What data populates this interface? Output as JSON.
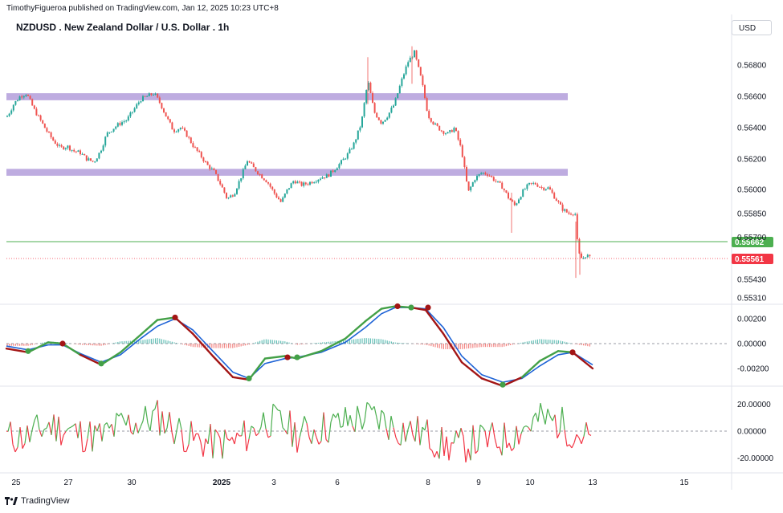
{
  "header": {
    "publisher": "TimothyFigueroa published on TradingView.com, Jan 12, 2025 10:23 UTC+8"
  },
  "title": {
    "text": "NZDUSD . New Zealand Dollar / U.S. Dollar . 1h"
  },
  "currency": "USD",
  "footer": {
    "logo_text": "TradingView",
    "logo_icon": "tradingview-logo-icon"
  },
  "colors": {
    "up": "#26a69a",
    "down": "#ef5350",
    "zone": "#b39ddb",
    "green_line": "#4caf50",
    "red_line": "#f23645",
    "fast": "#43a047",
    "slow": "#1e63d6",
    "slow_down": "#a31515"
  },
  "chart_data": [
    {
      "type": "candlestick",
      "title": "NZDUSD . New Zealand Dollar / U.S. Dollar . 1h",
      "y_ticks": [
        "0.56800",
        "0.56600",
        "0.56400",
        "0.56200",
        "0.56000",
        "0.55850",
        "0.55700",
        "0.55430",
        "0.55310"
      ],
      "ylim": [
        0.5528,
        0.5694
      ],
      "x_labels": [
        "25",
        "27",
        "30",
        "2025",
        "3",
        "6",
        "8",
        "9",
        "10",
        "13",
        "15"
      ],
      "current_price": "0.55561",
      "horizontal_line": "0.55662",
      "zones": [
        {
          "low": 0.56575,
          "high": 0.5662
        },
        {
          "low": 0.5609,
          "high": 0.56135
        }
      ],
      "close_path": [
        [
          0,
          0.5642
        ],
        [
          10,
          0.5648
        ],
        [
          17,
          0.5655
        ],
        [
          25,
          0.566
        ],
        [
          33,
          0.5662
        ],
        [
          42,
          0.5652
        ],
        [
          50,
          0.5645
        ],
        [
          58,
          0.5638
        ],
        [
          66,
          0.5632
        ],
        [
          75,
          0.5627
        ],
        [
          84,
          0.5628
        ],
        [
          92,
          0.5625
        ],
        [
          100,
          0.5624
        ],
        [
          108,
          0.562
        ],
        [
          117,
          0.5618
        ],
        [
          125,
          0.5625
        ],
        [
          133,
          0.5636
        ],
        [
          142,
          0.564
        ],
        [
          150,
          0.5643
        ],
        [
          158,
          0.5645
        ],
        [
          166,
          0.5651
        ],
        [
          175,
          0.5658
        ],
        [
          183,
          0.566
        ],
        [
          192,
          0.5662
        ],
        [
          200,
          0.5655
        ],
        [
          208,
          0.5646
        ],
        [
          216,
          0.5638
        ],
        [
          225,
          0.564
        ],
        [
          233,
          0.5635
        ],
        [
          241,
          0.5628
        ],
        [
          250,
          0.5622
        ],
        [
          258,
          0.5616
        ],
        [
          266,
          0.5612
        ],
        [
          275,
          0.5603
        ],
        [
          283,
          0.5594
        ],
        [
          292,
          0.5598
        ],
        [
          300,
          0.5608
        ],
        [
          308,
          0.5619
        ],
        [
          316,
          0.5614
        ],
        [
          325,
          0.5609
        ],
        [
          333,
          0.5605
        ],
        [
          341,
          0.5598
        ],
        [
          350,
          0.5592
        ],
        [
          358,
          0.56
        ],
        [
          366,
          0.5606
        ],
        [
          375,
          0.5603
        ],
        [
          383,
          0.5604
        ],
        [
          392,
          0.5606
        ],
        [
          400,
          0.5608
        ],
        [
          408,
          0.5609
        ],
        [
          416,
          0.5613
        ],
        [
          425,
          0.5618
        ],
        [
          433,
          0.5623
        ],
        [
          441,
          0.563
        ],
        [
          450,
          0.5643
        ],
        [
          458,
          0.567
        ],
        [
          466,
          0.565
        ],
        [
          475,
          0.5643
        ],
        [
          483,
          0.5648
        ],
        [
          491,
          0.5655
        ],
        [
          500,
          0.567
        ],
        [
          508,
          0.5682
        ],
        [
          516,
          0.5688
        ],
        [
          525,
          0.567
        ],
        [
          533,
          0.5648
        ],
        [
          541,
          0.5642
        ],
        [
          550,
          0.5638
        ],
        [
          558,
          0.5636
        ],
        [
          566,
          0.564
        ],
        [
          575,
          0.5625
        ],
        [
          583,
          0.5598
        ],
        [
          591,
          0.5607
        ],
        [
          600,
          0.5611
        ],
        [
          608,
          0.561
        ],
        [
          616,
          0.5606
        ],
        [
          625,
          0.5602
        ],
        [
          633,
          0.5595
        ],
        [
          641,
          0.559
        ],
        [
          650,
          0.5598
        ],
        [
          658,
          0.5603
        ],
        [
          666,
          0.5604
        ],
        [
          675,
          0.5601
        ],
        [
          683,
          0.5601
        ],
        [
          691,
          0.5595
        ],
        [
          700,
          0.5588
        ],
        [
          708,
          0.5585
        ],
        [
          716,
          0.5586
        ],
        [
          720,
          0.556
        ],
        [
          725,
          0.5556
        ],
        [
          730,
          0.5559
        ],
        [
          736,
          0.5556
        ]
      ],
      "oscillator": {
        "y_ticks": [
          "0.00200",
          "0.00000",
          "-0.00200"
        ],
        "ylim": [
          -0.0037,
          0.0035
        ],
        "fast_path": [
          [
            8,
            -0.0004
          ],
          [
            35,
            -0.0007
          ],
          [
            60,
            0.0001
          ],
          [
            78,
            0.0
          ],
          [
            100,
            -0.0009
          ],
          [
            126,
            -0.0017
          ],
          [
            150,
            -0.0007
          ],
          [
            175,
            0.0007
          ],
          [
            196,
            0.0019
          ],
          [
            218,
            0.0021
          ],
          [
            240,
            0.0008
          ],
          [
            265,
            -0.001
          ],
          [
            290,
            -0.0027
          ],
          [
            310,
            -0.0029
          ],
          [
            330,
            -0.0012
          ],
          [
            355,
            -0.001
          ],
          [
            370,
            -0.0012
          ],
          [
            400,
            -0.0006
          ],
          [
            430,
            0.0004
          ],
          [
            455,
            0.0018
          ],
          [
            475,
            0.0028
          ],
          [
            492,
            0.003
          ],
          [
            512,
            0.0029
          ],
          [
            530,
            0.0027
          ],
          [
            552,
            0.0008
          ],
          [
            575,
            -0.0015
          ],
          [
            600,
            -0.0028
          ],
          [
            626,
            -0.0034
          ],
          [
            650,
            -0.0027
          ],
          [
            672,
            -0.0014
          ],
          [
            695,
            -0.0006
          ],
          [
            713,
            -0.0007
          ],
          [
            738,
            -0.002
          ]
        ],
        "slow_path": [
          [
            8,
            -0.0002
          ],
          [
            35,
            -0.0005
          ],
          [
            60,
            -0.0001
          ],
          [
            78,
            -0.0001
          ],
          [
            100,
            -0.0008
          ],
          [
            126,
            -0.0015
          ],
          [
            150,
            -0.0009
          ],
          [
            175,
            0.0004
          ],
          [
            196,
            0.0014
          ],
          [
            218,
            0.002
          ],
          [
            240,
            0.0011
          ],
          [
            265,
            -0.0006
          ],
          [
            290,
            -0.0023
          ],
          [
            310,
            -0.0028
          ],
          [
            330,
            -0.0016
          ],
          [
            355,
            -0.0012
          ],
          [
            370,
            -0.0011
          ],
          [
            400,
            -0.0007
          ],
          [
            430,
            0.0001
          ],
          [
            455,
            0.0013
          ],
          [
            475,
            0.0024
          ],
          [
            492,
            0.0029
          ],
          [
            512,
            0.0029
          ],
          [
            530,
            0.0028
          ],
          [
            552,
            0.0013
          ],
          [
            575,
            -0.001
          ],
          [
            600,
            -0.0025
          ],
          [
            626,
            -0.0031
          ],
          [
            650,
            -0.0028
          ],
          [
            672,
            -0.0018
          ],
          [
            695,
            -0.0009
          ],
          [
            713,
            -0.0007
          ],
          [
            738,
            -0.0017
          ]
        ],
        "crosses": [
          [
            35,
            -0.0006,
            "up"
          ],
          [
            78,
            0.0,
            "down"
          ],
          [
            126,
            -0.0016,
            "up"
          ],
          [
            218,
            0.0021,
            "down"
          ],
          [
            310,
            -0.0028,
            "up"
          ],
          [
            358,
            -0.0011,
            "down"
          ],
          [
            370,
            -0.0011,
            "up"
          ],
          [
            495,
            0.003,
            "down"
          ],
          [
            512,
            0.0029,
            "up"
          ],
          [
            533,
            0.0029,
            "down"
          ],
          [
            626,
            -0.0033,
            "up"
          ],
          [
            713,
            -0.0007,
            "down"
          ]
        ]
      },
      "momentum": {
        "y_ticks": [
          "20.00000",
          "0.00000",
          "-20.00000"
        ],
        "ylim": [
          -28,
          30
        ]
      }
    }
  ]
}
